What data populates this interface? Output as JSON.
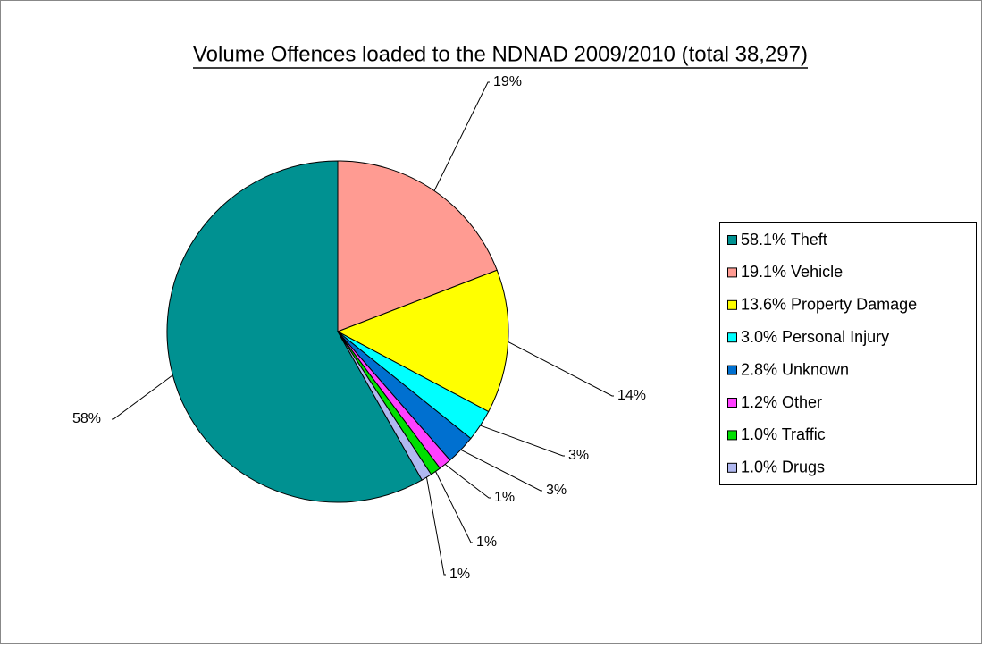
{
  "chart_data": {
    "type": "pie",
    "title": "Volume Offences loaded to the NDNAD 2009/2010 (total 38,297)",
    "categories": [
      "58.1% Theft",
      "19.1% Vehicle",
      "13.6% Property Damage",
      "3.0% Personal Injury",
      "2.8% Unknown",
      "1.2% Other",
      "1.0% Traffic",
      "1.0% Drugs"
    ],
    "values": [
      58.1,
      19.1,
      13.6,
      3.0,
      2.8,
      1.2,
      1.0,
      1.0
    ],
    "value_labels": [
      "58%",
      "19%",
      "14%",
      "3%",
      "3%",
      "1%",
      "1%",
      "1%"
    ],
    "colors": [
      "#009191",
      "#ff9b92",
      "#ffff00",
      "#00ffff",
      "#0070d0",
      "#ff40ff",
      "#00e000",
      "#b0b8f0"
    ],
    "legend": "right"
  }
}
